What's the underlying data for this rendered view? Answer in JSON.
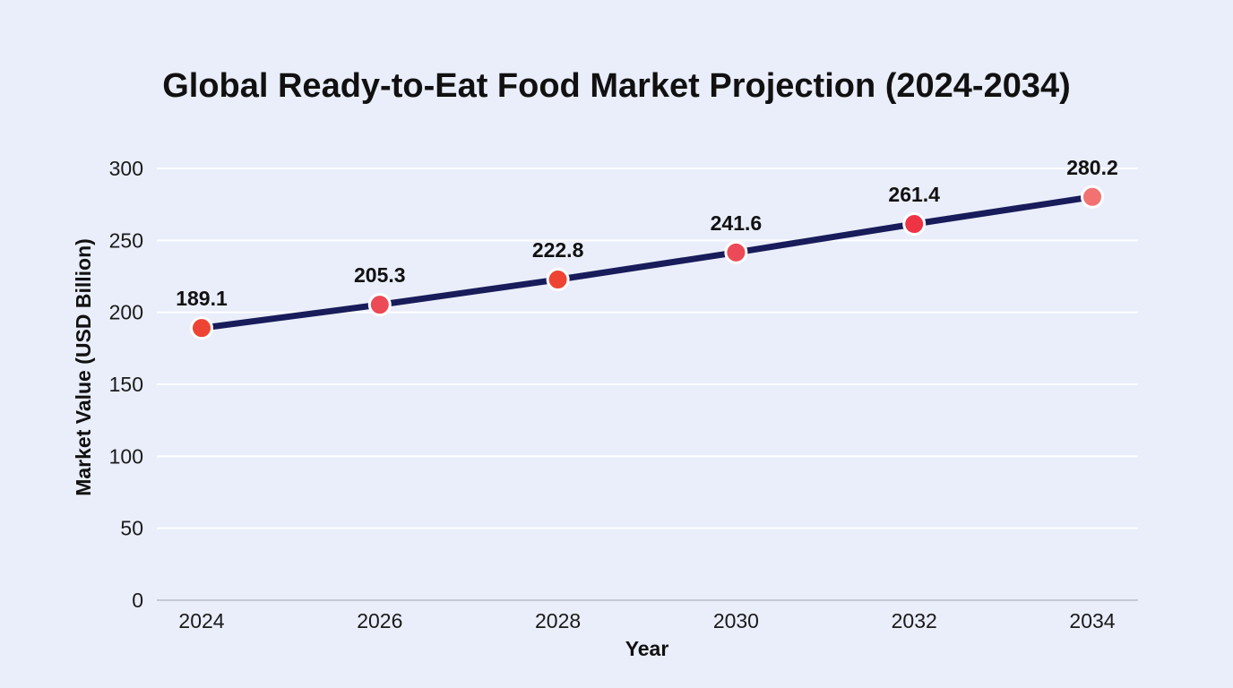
{
  "chart_data": {
    "type": "line",
    "title": "Global Ready-to-Eat Food Market Projection (2024-2034)",
    "xlabel": "Year",
    "ylabel": "Market Value (USD Billion)",
    "categories": [
      "2024",
      "2026",
      "2028",
      "2030",
      "2032",
      "2034"
    ],
    "series": [
      {
        "values": [
          189.1,
          205.3,
          222.8,
          241.6,
          261.4,
          280.2
        ],
        "data_labels": [
          "189.1",
          "205.3",
          "222.8",
          "241.6",
          "261.4",
          "280.2"
        ],
        "line_color": "#181c5a",
        "marker_colors": [
          "#ee4433",
          "#ec4a56",
          "#ee4433",
          "#ec4a56",
          "#ee3344",
          "#f27272"
        ]
      }
    ],
    "ylim": [
      0,
      300
    ],
    "yticks": [
      0,
      50,
      100,
      150,
      200,
      250,
      300
    ],
    "grid": true,
    "legend": "none"
  }
}
